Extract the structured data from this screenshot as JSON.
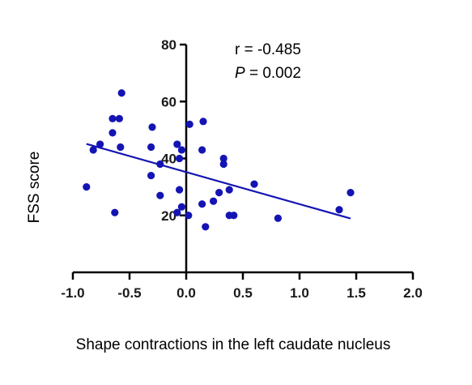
{
  "chart_data": {
    "type": "scatter",
    "title": "",
    "xlabel": "Shape contractions in the  left caudate nucleus",
    "ylabel": "FSS score",
    "xlim": [
      -1.0,
      2.0
    ],
    "ylim": [
      0,
      80
    ],
    "x_ticks": [
      "-1.0",
      "-0.5",
      "0.0",
      "0.5",
      "1.0",
      "1.5",
      "2.0"
    ],
    "x_tick_values": [
      -1.0,
      -0.5,
      0.0,
      0.5,
      1.0,
      1.5,
      2.0
    ],
    "y_ticks": [
      "20",
      "40",
      "60",
      "80"
    ],
    "y_tick_values": [
      20,
      40,
      60,
      80
    ],
    "annotations": {
      "r_text": "r = -0.485",
      "p_label": "P",
      "p_value": " = 0.002"
    },
    "point_color": "#1414b4",
    "line_color": "#1414b4",
    "grid": false,
    "points": [
      {
        "x": -0.88,
        "y": 30
      },
      {
        "x": -0.82,
        "y": 43
      },
      {
        "x": -0.76,
        "y": 45
      },
      {
        "x": -0.65,
        "y": 54
      },
      {
        "x": -0.65,
        "y": 49
      },
      {
        "x": -0.63,
        "y": 21
      },
      {
        "x": -0.59,
        "y": 54
      },
      {
        "x": -0.57,
        "y": 63
      },
      {
        "x": -0.58,
        "y": 44
      },
      {
        "x": -0.3,
        "y": 51
      },
      {
        "x": -0.31,
        "y": 44
      },
      {
        "x": -0.31,
        "y": 34
      },
      {
        "x": -0.23,
        "y": 38
      },
      {
        "x": -0.23,
        "y": 27
      },
      {
        "x": -0.08,
        "y": 45
      },
      {
        "x": -0.06,
        "y": 40
      },
      {
        "x": -0.06,
        "y": 29
      },
      {
        "x": -0.08,
        "y": 21
      },
      {
        "x": -0.04,
        "y": 43
      },
      {
        "x": -0.04,
        "y": 23
      },
      {
        "x": 0.03,
        "y": 52
      },
      {
        "x": 0.02,
        "y": 20
      },
      {
        "x": 0.15,
        "y": 53
      },
      {
        "x": 0.14,
        "y": 43
      },
      {
        "x": 0.14,
        "y": 24
      },
      {
        "x": 0.17,
        "y": 16
      },
      {
        "x": 0.24,
        "y": 25
      },
      {
        "x": 0.29,
        "y": 28
      },
      {
        "x": 0.33,
        "y": 40
      },
      {
        "x": 0.33,
        "y": 38
      },
      {
        "x": 0.38,
        "y": 29
      },
      {
        "x": 0.38,
        "y": 20
      },
      {
        "x": 0.42,
        "y": 20
      },
      {
        "x": 0.6,
        "y": 31
      },
      {
        "x": 0.81,
        "y": 19
      },
      {
        "x": 1.35,
        "y": 22
      },
      {
        "x": 1.45,
        "y": 28
      }
    ],
    "regression_line": {
      "x": [
        -0.88,
        1.45
      ],
      "y": [
        45.1,
        18.9
      ]
    }
  }
}
